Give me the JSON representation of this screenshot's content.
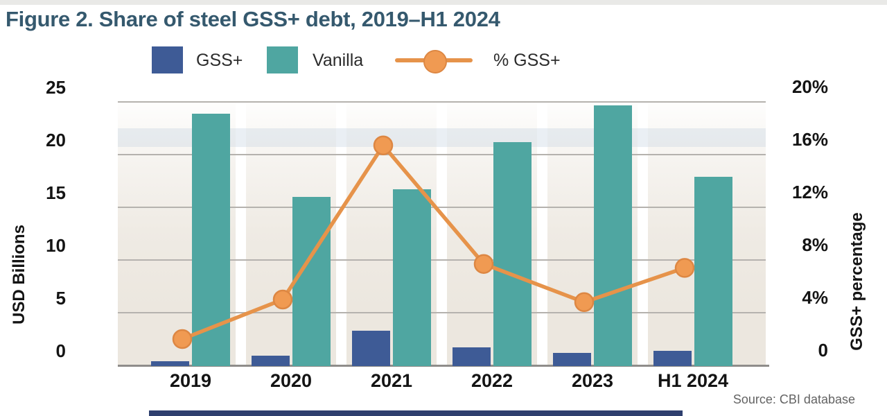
{
  "title": "Figure 2. Share of steel GSS+ debt, 2019–H1 2024",
  "legend": {
    "gss_label": "GSS+",
    "vanilla_label": "Vanilla",
    "pct_label": "% GSS+"
  },
  "source": "Source: CBI database",
  "colors": {
    "title_text": "#35596e",
    "bar_gss": "#3e5b96",
    "bar_vanilla": "#4fa6a1",
    "line_pct": "#e6934a",
    "marker_fill": "#f09a52",
    "marker_stroke": "#dd8743",
    "grid": "#b5b2ae",
    "baseline": "#8f8d8a",
    "band": "#ece7df",
    "top_strip": "#e9e9e7",
    "bottom_bar": "#2e3f6e",
    "tick_text": "#141414",
    "source_text": "#636363"
  },
  "chart_data": {
    "type": "combo",
    "categories": [
      "2019",
      "2020",
      "2021",
      "2022",
      "2023",
      "H1 2024"
    ],
    "series": [
      {
        "name": "GSS+",
        "type": "bar",
        "axis": "left",
        "values": [
          0.4,
          0.9,
          3.3,
          1.7,
          1.2,
          1.4
        ]
      },
      {
        "name": "Vanilla",
        "type": "bar",
        "axis": "left",
        "values": [
          23.9,
          16.0,
          16.7,
          21.2,
          24.7,
          17.9
        ]
      },
      {
        "name": "% GSS+",
        "type": "line",
        "axis": "right",
        "values": [
          2.0,
          5.0,
          16.7,
          7.7,
          4.8,
          7.4
        ]
      }
    ],
    "ylabel_left": "USD Billions",
    "ylabel_right": "GSS+ percentage",
    "ylim_left": [
      0,
      25
    ],
    "ylim_right": [
      0,
      20
    ],
    "grid": true,
    "legend_position": "top",
    "left_ticks": [
      {
        "label": "25",
        "value": 25
      },
      {
        "label": "20",
        "value": 20
      },
      {
        "label": "15",
        "value": 15
      },
      {
        "label": "10",
        "value": 10
      },
      {
        "label": "5",
        "value": 5
      },
      {
        "label": "0",
        "value": 0
      }
    ],
    "right_ticks": [
      {
        "label": "20%",
        "value": 20
      },
      {
        "label": "16%",
        "value": 16
      },
      {
        "label": "12%",
        "value": 12
      },
      {
        "label": "8%",
        "value": 8
      },
      {
        "label": "4%",
        "value": 4
      },
      {
        "label": "0",
        "value": 0
      }
    ]
  }
}
